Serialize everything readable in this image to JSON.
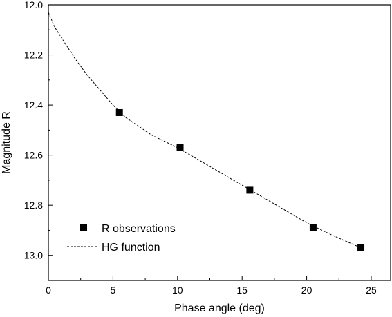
{
  "chart_data": {
    "type": "scatter",
    "xlabel": "Phase angle (deg)",
    "ylabel": "Magnitude R",
    "xlim": [
      0,
      26.5
    ],
    "ylim": [
      12.0,
      13.1
    ],
    "y_inverted": true,
    "x_ticks": [
      0,
      5,
      10,
      15,
      20,
      25
    ],
    "x_tick_labels": [
      "0",
      "5",
      "10",
      "15",
      "20",
      "25"
    ],
    "y_ticks": [
      12.0,
      12.2,
      12.4,
      12.6,
      12.8,
      13.0
    ],
    "y_tick_labels": [
      "12.0",
      "12.2",
      "12.4",
      "12.6",
      "12.8",
      "13.0"
    ],
    "grid": false,
    "legend_position": "bottom-left",
    "series": [
      {
        "name": "R observations",
        "marker": "square",
        "color": "#000000",
        "points": [
          {
            "x": 5.5,
            "y": 12.43
          },
          {
            "x": 10.2,
            "y": 12.57
          },
          {
            "x": 15.6,
            "y": 12.74
          },
          {
            "x": 20.5,
            "y": 12.89
          },
          {
            "x": 24.2,
            "y": 12.97
          }
        ]
      },
      {
        "name": "HG function",
        "line_style": "dashed",
        "color": "#000000",
        "points": [
          {
            "x": 0.0,
            "y": 12.03
          },
          {
            "x": 0.5,
            "y": 12.09
          },
          {
            "x": 1.0,
            "y": 12.13
          },
          {
            "x": 2.0,
            "y": 12.21
          },
          {
            "x": 3.0,
            "y": 12.28
          },
          {
            "x": 4.0,
            "y": 12.34
          },
          {
            "x": 5.0,
            "y": 12.4
          },
          {
            "x": 6.0,
            "y": 12.45
          },
          {
            "x": 8.0,
            "y": 12.52
          },
          {
            "x": 10.0,
            "y": 12.57
          },
          {
            "x": 12.0,
            "y": 12.63
          },
          {
            "x": 14.0,
            "y": 12.69
          },
          {
            "x": 16.0,
            "y": 12.75
          },
          {
            "x": 18.0,
            "y": 12.81
          },
          {
            "x": 20.0,
            "y": 12.87
          },
          {
            "x": 22.0,
            "y": 12.92
          },
          {
            "x": 24.2,
            "y": 12.97
          }
        ]
      }
    ]
  }
}
